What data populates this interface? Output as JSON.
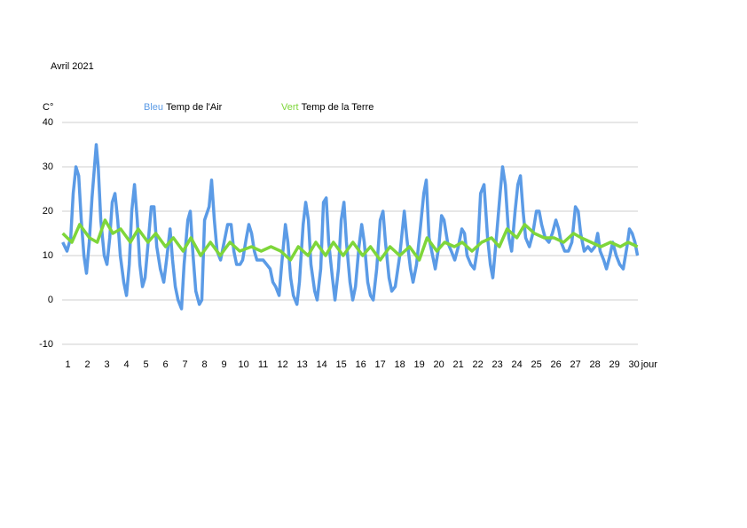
{
  "chart_data": {
    "type": "line",
    "title": "Avril 2021",
    "y_label": "C°",
    "x_label": "jour",
    "xlim": [
      0.7,
      30.2
    ],
    "xticks": [
      1,
      2,
      3,
      4,
      5,
      6,
      7,
      8,
      9,
      10,
      11,
      12,
      13,
      14,
      15,
      16,
      17,
      18,
      19,
      20,
      21,
      22,
      23,
      24,
      25,
      26,
      27,
      28,
      29,
      30
    ],
    "ylim": [
      -10,
      40
    ],
    "yticks": [
      -10,
      0,
      10,
      20,
      30,
      40
    ],
    "grid": true,
    "series": [
      {
        "name": "Temp de l'Air",
        "color_label": "Bleu",
        "color": "#5b9be6",
        "x": [
          0.73,
          0.95,
          1.14,
          1.27,
          1.41,
          1.55,
          1.68,
          1.82,
          1.95,
          2.09,
          2.23,
          2.36,
          2.45,
          2.55,
          2.68,
          2.86,
          3.0,
          3.14,
          3.27,
          3.41,
          3.55,
          3.68,
          3.86,
          4.0,
          4.14,
          4.27,
          4.41,
          4.55,
          4.68,
          4.82,
          4.95,
          5.09,
          5.27,
          5.41,
          5.55,
          5.73,
          5.91,
          6.05,
          6.23,
          6.36,
          6.5,
          6.64,
          6.82,
          6.95,
          7.14,
          7.27,
          7.41,
          7.55,
          7.73,
          7.86,
          8.0,
          8.23,
          8.36,
          8.5,
          8.64,
          8.82,
          9.0,
          9.18,
          9.36,
          9.5,
          9.64,
          9.82,
          9.95,
          10.14,
          10.27,
          10.41,
          10.55,
          10.68,
          10.86,
          11.0,
          11.18,
          11.36,
          11.5,
          11.64,
          11.82,
          11.95,
          12.14,
          12.27,
          12.41,
          12.55,
          12.73,
          12.86,
          13.05,
          13.18,
          13.32,
          13.45,
          13.64,
          13.77,
          13.95,
          14.09,
          14.23,
          14.36,
          14.55,
          14.68,
          14.86,
          15.0,
          15.14,
          15.27,
          15.45,
          15.59,
          15.73,
          15.91,
          16.05,
          16.18,
          16.36,
          16.5,
          16.64,
          16.82,
          17.0,
          17.14,
          17.27,
          17.45,
          17.59,
          17.77,
          18.0,
          18.23,
          18.36,
          18.55,
          18.68,
          18.86,
          19.05,
          19.23,
          19.36,
          19.5,
          19.68,
          19.82,
          20.0,
          20.14,
          20.27,
          20.45,
          20.64,
          20.82,
          21.0,
          21.18,
          21.32,
          21.45,
          21.64,
          21.82,
          22.0,
          22.14,
          22.32,
          22.5,
          22.64,
          22.77,
          22.95,
          23.14,
          23.27,
          23.41,
          23.59,
          23.73,
          23.91,
          24.05,
          24.18,
          24.32,
          24.45,
          24.64,
          24.82,
          25.0,
          25.14,
          25.27,
          25.45,
          25.64,
          25.82,
          26.0,
          26.14,
          26.27,
          26.45,
          26.64,
          26.82,
          27.0,
          27.14,
          27.27,
          27.45,
          27.64,
          27.82,
          28.0,
          28.14,
          28.27,
          28.45,
          28.59,
          28.77,
          28.91,
          29.09,
          29.27,
          29.45,
          29.64,
          29.77,
          29.91,
          30.05,
          30.18
        ],
        "values": [
          13,
          11,
          14,
          24,
          30,
          28,
          18,
          10,
          6,
          13,
          23,
          30,
          35,
          30,
          18,
          10,
          8,
          14,
          22,
          24,
          18,
          10,
          4,
          1,
          8,
          20,
          26,
          18,
          8,
          3,
          5,
          12,
          21,
          21,
          12,
          7,
          4,
          9,
          16,
          9,
          3,
          0,
          -2,
          8,
          18,
          20,
          10,
          2,
          -1,
          0,
          18,
          21,
          27,
          18,
          11,
          9,
          13,
          17,
          17,
          11,
          8,
          8,
          9,
          14,
          17,
          15,
          11,
          9,
          9,
          9,
          8,
          7,
          4,
          3,
          1,
          8,
          17,
          13,
          5,
          1,
          -1,
          4,
          17,
          22,
          18,
          8,
          2,
          0,
          7,
          22,
          23,
          13,
          5,
          0,
          7,
          18,
          22,
          13,
          4,
          0,
          3,
          12,
          17,
          13,
          4,
          1,
          0,
          7,
          18,
          20,
          13,
          5,
          2,
          3,
          10,
          20,
          14,
          7,
          4,
          8,
          16,
          24,
          27,
          14,
          10,
          7,
          12,
          19,
          18,
          13,
          11,
          9,
          12,
          16,
          15,
          10,
          8,
          7,
          12,
          24,
          26,
          14,
          8,
          5,
          14,
          24,
          30,
          26,
          14,
          11,
          20,
          26,
          28,
          20,
          14,
          12,
          15,
          20,
          20,
          17,
          14,
          13,
          15,
          18,
          16,
          13,
          11,
          11,
          13,
          21,
          20,
          15,
          11,
          12,
          11,
          12,
          15,
          11,
          9,
          7,
          10,
          13,
          10,
          8,
          7,
          12,
          16,
          15,
          13,
          10
        ]
      },
      {
        "name": "Temp de la Terre",
        "color_label": "Vert",
        "color": "#7ed63a",
        "x": [
          0.73,
          1.2,
          1.6,
          2.1,
          2.5,
          2.9,
          3.3,
          3.7,
          4.2,
          4.6,
          5.1,
          5.5,
          6.0,
          6.4,
          6.9,
          7.3,
          7.8,
          8.3,
          8.8,
          9.3,
          9.8,
          10.4,
          10.9,
          11.4,
          11.9,
          12.4,
          12.8,
          13.3,
          13.7,
          14.2,
          14.6,
          15.1,
          15.6,
          16.1,
          16.5,
          17.0,
          17.5,
          18.0,
          18.5,
          19.0,
          19.4,
          19.9,
          20.3,
          20.8,
          21.2,
          21.7,
          22.2,
          22.7,
          23.1,
          23.5,
          24.0,
          24.4,
          24.9,
          25.4,
          25.9,
          26.4,
          26.9,
          27.3,
          27.8,
          28.3,
          28.8,
          29.3,
          29.7,
          30.18
        ],
        "values": [
          15,
          13,
          17,
          14,
          13,
          18,
          15,
          16,
          13,
          16,
          13,
          15,
          12,
          14,
          11,
          14,
          10,
          13,
          10,
          13,
          11,
          12,
          11,
          12,
          11,
          9,
          12,
          10,
          13,
          10,
          13,
          10,
          13,
          10,
          12,
          9,
          12,
          10,
          12,
          9,
          14,
          11,
          13,
          12,
          13,
          11,
          13,
          14,
          12,
          16,
          14,
          17,
          15,
          14,
          14,
          13,
          15,
          14,
          13,
          12,
          13,
          12,
          13,
          12
        ]
      }
    ]
  }
}
